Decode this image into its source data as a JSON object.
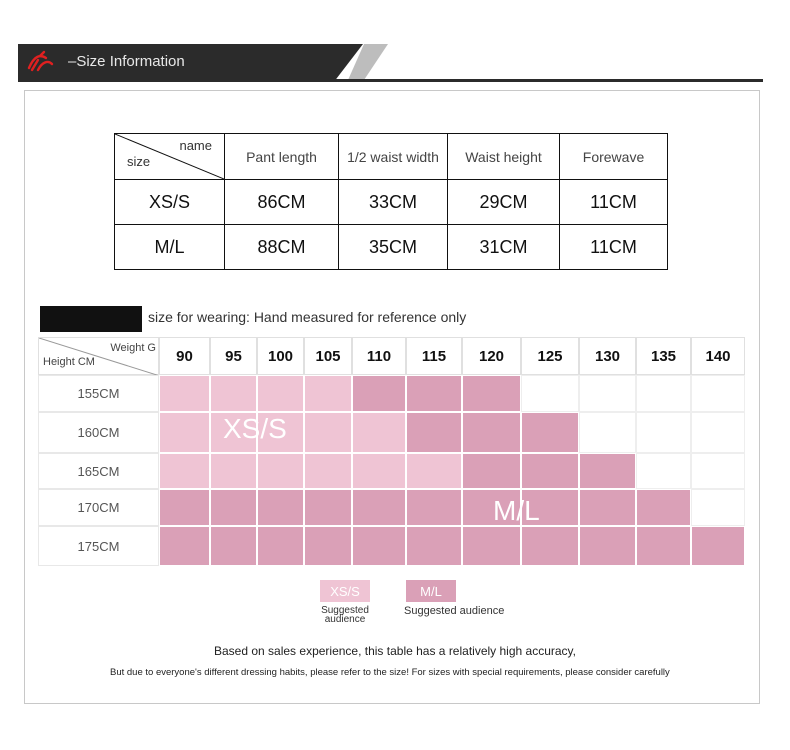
{
  "banner": {
    "title": "–Size Information"
  },
  "size_table": {
    "corner_top": "name",
    "corner_bottom": "size",
    "columns": [
      "Pant length",
      "1/2 waist width",
      "Waist height",
      "Forewave"
    ],
    "rows": [
      {
        "size": "XS/S",
        "values": [
          "86CM",
          "33CM",
          "29CM",
          "11CM"
        ]
      },
      {
        "size": "M/L",
        "values": [
          "88CM",
          "35CM",
          "31CM",
          "11CM"
        ]
      }
    ]
  },
  "recommend": {
    "caption": "size for wearing: Hand measured for reference only"
  },
  "grid": {
    "corner_weight": "Weight G",
    "corner_height": "Height CM",
    "weights": [
      "90",
      "95",
      "100",
      "105",
      "110",
      "115",
      "120",
      "125",
      "130",
      "135",
      "140"
    ],
    "heights": [
      "155CM",
      "160CM",
      "165CM",
      "170CM",
      "175CM"
    ],
    "cells": [
      [
        "L",
        "L",
        "L",
        "L",
        "D",
        "D",
        "D",
        "E",
        "E",
        "E",
        "E"
      ],
      [
        "L",
        "L",
        "L",
        "L",
        "L",
        "D",
        "D",
        "D",
        "E",
        "E",
        "E"
      ],
      [
        "L",
        "L",
        "L",
        "L",
        "L",
        "L",
        "D",
        "D",
        "D",
        "E",
        "E"
      ],
      [
        "D",
        "D",
        "D",
        "D",
        "D",
        "D",
        "D",
        "D",
        "D",
        "D",
        "E"
      ],
      [
        "D",
        "D",
        "D",
        "D",
        "D",
        "D",
        "D",
        "D",
        "D",
        "D",
        "D"
      ]
    ],
    "label_xs": "XS/S",
    "label_ml": "M/L"
  },
  "legend": {
    "xs_box": "XS/S",
    "xs_text": "Suggested audience",
    "ml_box": "M/L",
    "ml_text": "Suggested audience"
  },
  "notes": {
    "line1": "Based on sales experience, this table has a relatively high accuracy,",
    "line2": "But due to everyone's different dressing habits, please refer to the size! For sizes with special requirements, please consider carefully"
  },
  "colors": {
    "light": "#efc4d4",
    "dark": "#daa0b7",
    "banner": "#2b2b2b",
    "logo": "#e02020"
  }
}
